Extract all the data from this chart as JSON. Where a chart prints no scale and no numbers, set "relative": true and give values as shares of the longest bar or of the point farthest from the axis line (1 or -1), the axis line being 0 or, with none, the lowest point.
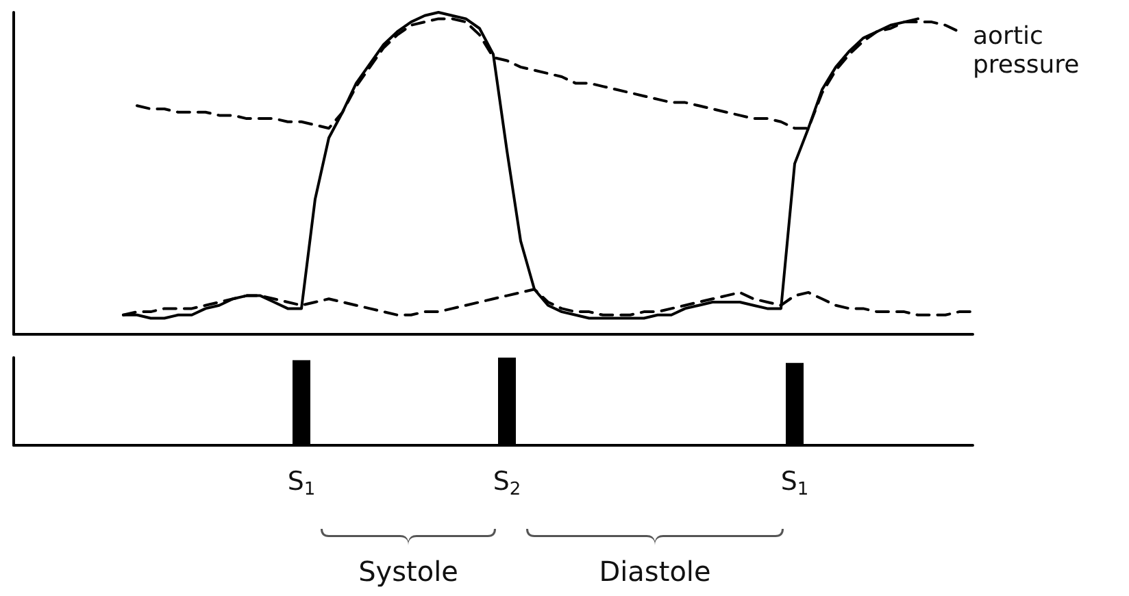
{
  "chart_data": [
    {
      "type": "line",
      "relative": true,
      "tick_labels": false,
      "marker": "none",
      "grid": false,
      "categories": [
        null,
        null,
        null,
        null,
        null,
        null,
        null,
        null,
        null,
        null,
        null,
        null,
        null,
        null,
        null,
        null,
        null,
        null,
        null,
        null,
        null,
        null,
        null,
        null,
        null,
        null,
        null,
        null,
        null,
        null,
        null,
        null,
        null,
        null,
        null,
        null,
        null,
        null,
        null,
        null,
        null,
        null,
        null,
        null,
        null,
        null,
        null,
        null,
        null,
        null,
        null,
        null,
        null,
        null,
        null,
        null,
        null,
        null,
        null,
        null,
        null,
        null,
        null,
        null,
        null,
        null,
        null,
        null,
        null,
        null,
        null
      ],
      "series": [
        {
          "color": "#000000",
          "line_style": "solid",
          "values": [
            null,
            null,
            null,
            null,
            null,
            null,
            null,
            null,
            0.06,
            0.06,
            0.05,
            0.05,
            0.06,
            0.06,
            0.08,
            0.09,
            0.11,
            0.12,
            0.12,
            0.1,
            0.08,
            0.08,
            0.42,
            0.61,
            0.69,
            0.78,
            0.84,
            0.9,
            0.94,
            0.97,
            0.99,
            1.0,
            0.99,
            0.98,
            0.95,
            0.87,
            0.57,
            0.29,
            0.14,
            0.09,
            0.07,
            0.06,
            0.05,
            0.05,
            0.05,
            0.05,
            0.05,
            0.06,
            0.06,
            0.08,
            0.09,
            0.1,
            0.1,
            0.1,
            0.09,
            0.08,
            0.08,
            0.53,
            0.64,
            0.76,
            0.83,
            0.88,
            0.92,
            0.94,
            0.96,
            0.97,
            0.98,
            null,
            null,
            null,
            null
          ]
        },
        {
          "name": "aortic pressure",
          "color": "#000000",
          "line_style": "dashed",
          "values": [
            null,
            null,
            null,
            null,
            null,
            null,
            null,
            null,
            null,
            0.71,
            0.7,
            0.7,
            0.69,
            0.69,
            0.69,
            0.68,
            0.68,
            0.67,
            0.67,
            0.67,
            0.66,
            0.66,
            0.65,
            0.64,
            0.69,
            0.77,
            0.83,
            0.89,
            0.93,
            0.96,
            0.97,
            0.98,
            0.98,
            0.97,
            0.93,
            0.86,
            0.85,
            0.83,
            0.82,
            0.81,
            0.8,
            0.78,
            0.78,
            0.77,
            0.76,
            0.75,
            0.74,
            0.73,
            0.72,
            0.72,
            0.71,
            0.7,
            0.69,
            0.68,
            0.67,
            0.67,
            0.66,
            0.64,
            0.64,
            0.75,
            0.82,
            0.87,
            0.91,
            0.94,
            0.95,
            0.97,
            0.97,
            0.97,
            0.96,
            0.94,
            null
          ]
        },
        {
          "color": "#000000",
          "line_style": "dashed",
          "values": [
            null,
            null,
            null,
            null,
            null,
            null,
            null,
            null,
            0.06,
            0.07,
            0.07,
            0.08,
            0.08,
            0.08,
            0.09,
            0.1,
            0.11,
            0.12,
            0.12,
            0.11,
            0.1,
            0.09,
            0.1,
            0.11,
            0.1,
            0.09,
            0.08,
            0.07,
            0.06,
            0.06,
            0.07,
            0.07,
            0.08,
            0.09,
            0.1,
            0.11,
            0.12,
            0.13,
            0.14,
            0.1,
            0.08,
            0.07,
            0.07,
            0.06,
            0.06,
            0.06,
            0.07,
            0.07,
            0.08,
            0.09,
            0.1,
            0.11,
            0.12,
            0.13,
            0.11,
            0.1,
            0.09,
            0.12,
            0.13,
            0.11,
            0.09,
            0.08,
            0.08,
            0.07,
            0.07,
            0.07,
            0.06,
            0.06,
            0.06,
            0.07,
            0.07
          ]
        }
      ]
    },
    {
      "type": "bar",
      "relative": true,
      "tick_labels": "x",
      "color": "#000000",
      "grid": false,
      "categories": [
        null,
        null,
        null,
        null,
        null,
        null,
        null,
        null,
        null,
        null,
        null,
        null,
        null,
        null,
        null,
        null,
        null,
        null,
        null,
        null,
        null,
        "S$_{1}$",
        null,
        null,
        null,
        null,
        null,
        null,
        null,
        null,
        null,
        null,
        null,
        null,
        null,
        null,
        "S$_{2}$",
        null,
        null,
        null,
        null,
        null,
        null,
        null,
        null,
        null,
        null,
        null,
        null,
        null,
        null,
        null,
        null,
        null,
        null,
        null,
        null,
        "S$_{1}$",
        null,
        null,
        null,
        null,
        null,
        null,
        null,
        null,
        null,
        null,
        null,
        null,
        null
      ],
      "values": [
        null,
        null,
        null,
        null,
        null,
        null,
        null,
        null,
        null,
        null,
        null,
        null,
        null,
        null,
        null,
        null,
        null,
        null,
        null,
        null,
        null,
        0.97,
        null,
        null,
        null,
        null,
        null,
        null,
        null,
        null,
        null,
        null,
        null,
        null,
        null,
        null,
        1.0,
        null,
        null,
        null,
        null,
        null,
        null,
        null,
        null,
        null,
        null,
        null,
        null,
        null,
        null,
        null,
        null,
        null,
        null,
        null,
        null,
        0.94,
        null,
        null,
        null,
        null,
        null,
        null,
        null,
        null,
        null,
        null,
        null,
        null,
        null
      ],
      "annotations": [
        "Systole",
        "Diastole"
      ]
    }
  ]
}
